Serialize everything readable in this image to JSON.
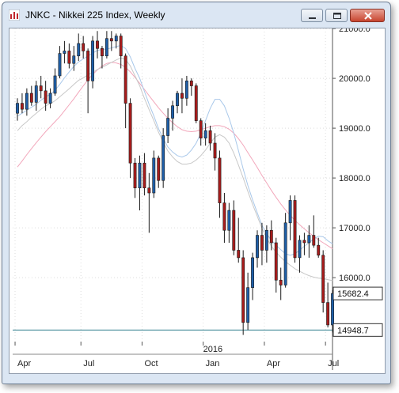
{
  "window": {
    "title": "JNKC - Nikkei 225 Index, Weekly"
  },
  "colors": {
    "up_candle": "#1f5fa8",
    "down_candle": "#a81c1c",
    "ma_fast": "#a9c8ea",
    "ma_mid": "#c8c8c8",
    "ma_slow": "#f2a7bb",
    "baseline": "#2e7d8c"
  },
  "icons": {
    "app": "chart-icon",
    "minimize": "minimize-icon",
    "maximize": "maximize-icon",
    "close": "close-icon"
  },
  "chart_data": {
    "type": "candlestick",
    "title": "JNKC - Nikkei 225 Index, Weekly",
    "x_tick_labels": [
      "Apr",
      "Jul",
      "Oct",
      "Jan",
      "Apr",
      "Jul"
    ],
    "year_label": "2016",
    "y_tick_labels": [
      "21000.0",
      "20000.0",
      "19000.0",
      "18000.0",
      "17000.0",
      "16000.0"
    ],
    "ylim": [
      14800,
      21150
    ],
    "grid": true,
    "price_labels": {
      "last": "15682.4",
      "marker": "14948.7"
    },
    "candles": [
      [
        19300,
        19600,
        19150,
        19500
      ],
      [
        19500,
        19700,
        19300,
        19380
      ],
      [
        19380,
        19800,
        19250,
        19700
      ],
      [
        19700,
        19850,
        19450,
        19520
      ],
      [
        19520,
        19950,
        19350,
        19850
      ],
      [
        19850,
        20050,
        19600,
        19750
      ],
      [
        19750,
        19950,
        19350,
        19500
      ],
      [
        19500,
        19800,
        19400,
        19700
      ],
      [
        19700,
        20200,
        19650,
        20050
      ],
      [
        20050,
        20650,
        20000,
        20500
      ],
      [
        20500,
        20750,
        20300,
        20550
      ],
      [
        20550,
        20700,
        20200,
        20300
      ],
      [
        20300,
        20650,
        20150,
        20450
      ],
      [
        20450,
        20900,
        20350,
        20700
      ],
      [
        20700,
        20850,
        20400,
        20550
      ],
      [
        20550,
        20600,
        19300,
        19950
      ],
      [
        19950,
        20850,
        19800,
        20750
      ],
      [
        20750,
        20950,
        20400,
        20600
      ],
      [
        20600,
        20650,
        20200,
        20450
      ],
      [
        20450,
        20950,
        20400,
        20800
      ],
      [
        20800,
        20950,
        20550,
        20750
      ],
      [
        20750,
        20900,
        20600,
        20850
      ],
      [
        20850,
        20900,
        20200,
        20450
      ],
      [
        20450,
        20500,
        19000,
        19500
      ],
      [
        19500,
        19600,
        18000,
        18300
      ],
      [
        18300,
        18400,
        17600,
        17800
      ],
      [
        17800,
        18450,
        17350,
        18300
      ],
      [
        18300,
        18500,
        17650,
        17800
      ],
      [
        17800,
        18100,
        16900,
        17700
      ],
      [
        17700,
        18550,
        17600,
        18400
      ],
      [
        18400,
        18450,
        17800,
        17950
      ],
      [
        17950,
        19000,
        17800,
        18850
      ],
      [
        18850,
        19400,
        18700,
        19200
      ],
      [
        19200,
        19550,
        18950,
        19450
      ],
      [
        19450,
        19750,
        19300,
        19700
      ],
      [
        19700,
        20000,
        19300,
        19600
      ],
      [
        19600,
        20050,
        19450,
        19950
      ],
      [
        19950,
        20000,
        19650,
        19850
      ],
      [
        19850,
        19900,
        19100,
        19150
      ],
      [
        19150,
        19200,
        18650,
        18800
      ],
      [
        18800,
        19100,
        18650,
        18950
      ],
      [
        18950,
        19050,
        18550,
        18700
      ],
      [
        18700,
        18900,
        18150,
        18400
      ],
      [
        18400,
        18550,
        17200,
        17500
      ],
      [
        17500,
        17700,
        16700,
        16950
      ],
      [
        16950,
        17500,
        16700,
        17350
      ],
      [
        17350,
        17550,
        16450,
        16550
      ],
      [
        16550,
        17200,
        16300,
        16400
      ],
      [
        16400,
        16550,
        14850,
        15100
      ],
      [
        15100,
        16100,
        14950,
        15800
      ],
      [
        15800,
        16500,
        15550,
        16400
      ],
      [
        16400,
        16950,
        16200,
        16850
      ],
      [
        16850,
        17100,
        16250,
        16550
      ],
      [
        16550,
        17050,
        16300,
        16950
      ],
      [
        16950,
        17150,
        16550,
        16700
      ],
      [
        16700,
        16800,
        15700,
        15950
      ],
      [
        15950,
        16200,
        15550,
        15850
      ],
      [
        15850,
        17300,
        15800,
        17100
      ],
      [
        17100,
        17650,
        16750,
        17550
      ],
      [
        17550,
        17650,
        16300,
        16400
      ],
      [
        16400,
        16850,
        16100,
        16750
      ],
      [
        16750,
        16900,
        16450,
        16700
      ],
      [
        16700,
        17050,
        16400,
        16850
      ],
      [
        16850,
        17250,
        16600,
        16650
      ],
      [
        16650,
        16800,
        16400,
        16450
      ],
      [
        16450,
        16550,
        15300,
        15500
      ],
      [
        15500,
        15900,
        15000,
        15050
      ],
      [
        15050,
        15750,
        14900,
        15682.4
      ]
    ],
    "ma_fast_values": [
      19240,
      19300,
      19360,
      19420,
      19480,
      19560,
      19630,
      19680,
      19760,
      19880,
      20010,
      20130,
      20240,
      20330,
      20390,
      20450,
      20510,
      20560,
      20580,
      20590,
      20610,
      20640,
      20660,
      20600,
      20430,
      20200,
      20000,
      19740,
      19480,
      19250,
      18990,
      18790,
      18620,
      18520,
      18450,
      18420,
      18460,
      18560,
      18700,
      18900,
      19150,
      19400,
      19580,
      19580,
      19450,
      19200,
      18900,
      18550,
      18180,
      17850,
      17560,
      17300,
      17050,
      16880,
      16750,
      16650,
      16560,
      16480,
      16450,
      16480,
      16550,
      16630,
      16700,
      16780,
      16830,
      16820,
      16740,
      16680
    ],
    "ma_mid_values": [
      18950,
      19050,
      19130,
      19220,
      19300,
      19380,
      19450,
      19490,
      19550,
      19630,
      19710,
      19790,
      19880,
      19960,
      20010,
      20070,
      20120,
      20180,
      20220,
      20270,
      20320,
      20370,
      20410,
      20380,
      20250,
      20050,
      19850,
      19600,
      19370,
      19150,
      18920,
      18720,
      18540,
      18420,
      18330,
      18280,
      18280,
      18300,
      18360,
      18450,
      18560,
      18700,
      18820,
      18870,
      18820,
      18700,
      18500,
      18260,
      18000,
      17730,
      17470,
      17230,
      16990,
      16790,
      16630,
      16510,
      16410,
      16320,
      16250,
      16180,
      16130,
      16080,
      16040,
      16010,
      15990,
      15980,
      15960,
      15940
    ],
    "ma_slow_values": [
      18220,
      18340,
      18470,
      18590,
      18710,
      18820,
      18930,
      19030,
      19130,
      19230,
      19350,
      19470,
      19590,
      19720,
      19850,
      19970,
      20080,
      20170,
      20250,
      20300,
      20320,
      20310,
      20280,
      20220,
      20130,
      20020,
      19900,
      19780,
      19650,
      19530,
      19410,
      19300,
      19200,
      19110,
      19030,
      18970,
      18940,
      18930,
      18940,
      18970,
      19000,
      19030,
      19050,
      19050,
      19030,
      18980,
      18900,
      18790,
      18660,
      18510,
      18360,
      18210,
      18050,
      17900,
      17750,
      17610,
      17480,
      17360,
      17250,
      17150,
      17060,
      16980,
      16900,
      16830,
      16760,
      16700,
      16640,
      16580
    ]
  }
}
